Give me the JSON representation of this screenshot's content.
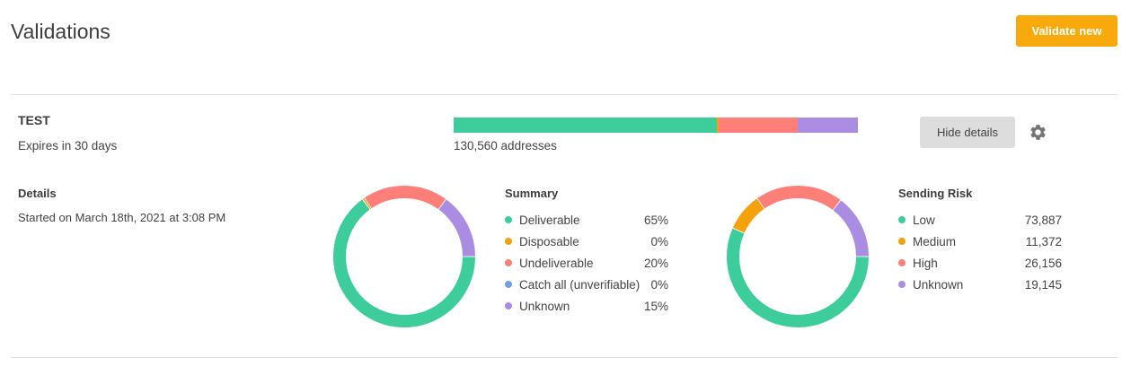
{
  "header": {
    "title": "Validations",
    "validate_button": "Validate new"
  },
  "list": {
    "name": "TEST",
    "expires": "Expires in 30 days",
    "addresses": "130,560 addresses",
    "hide_details_button": "Hide details",
    "progress_segments": [
      {
        "name": "Deliverable",
        "fraction": 0.65,
        "color": "#3ccd9a"
      },
      {
        "name": "Disposable",
        "fraction": 0.005,
        "color": "#f4a10c"
      },
      {
        "name": "Undeliverable",
        "fraction": 0.195,
        "color": "#fe7f78"
      },
      {
        "name": "Unknown",
        "fraction": 0.15,
        "color": "#aa8ce3"
      }
    ]
  },
  "details": {
    "title": "Details",
    "started": "Started on March 18th, 2021 at 3:08 PM"
  },
  "summary": {
    "title": "Summary",
    "items": [
      {
        "label": "Deliverable",
        "value": "65%",
        "color": "#3ccd9a"
      },
      {
        "label": "Disposable",
        "value": "0%",
        "color": "#f4a10c"
      },
      {
        "label": "Undeliverable",
        "value": "20%",
        "color": "#fe7f78"
      },
      {
        "label": "Catch all (unverifiable)",
        "value": "0%",
        "color": "#6fa3e6"
      },
      {
        "label": "Unknown",
        "value": "15%",
        "color": "#aa8ce3"
      }
    ]
  },
  "sending_risk": {
    "title": "Sending Risk",
    "items": [
      {
        "label": "Low",
        "value": "73,887",
        "color": "#3ccd9a"
      },
      {
        "label": "Medium",
        "value": "11,372",
        "color": "#f4a10c"
      },
      {
        "label": "High",
        "value": "26,156",
        "color": "#fe7f78"
      },
      {
        "label": "Unknown",
        "value": "19,145",
        "color": "#aa8ce3"
      }
    ]
  },
  "chart_data": [
    {
      "type": "pie",
      "categories": [
        "Deliverable",
        "Disposable",
        "Undeliverable",
        "Catch all (unverifiable)",
        "Unknown"
      ],
      "values": [
        65,
        0.5,
        19.5,
        0,
        15
      ],
      "colors": [
        "#3ccd9a",
        "#f4a10c",
        "#fe7f78",
        "#6fa3e6",
        "#aa8ce3"
      ],
      "style": "donut"
    },
    {
      "type": "pie",
      "categories": [
        "Low",
        "Medium",
        "High",
        "Unknown"
      ],
      "values": [
        73887,
        11372,
        26156,
        19145
      ],
      "colors": [
        "#3ccd9a",
        "#f4a10c",
        "#fe7f78",
        "#aa8ce3"
      ],
      "style": "donut"
    }
  ],
  "icons": {
    "settings": "gear-icon"
  }
}
